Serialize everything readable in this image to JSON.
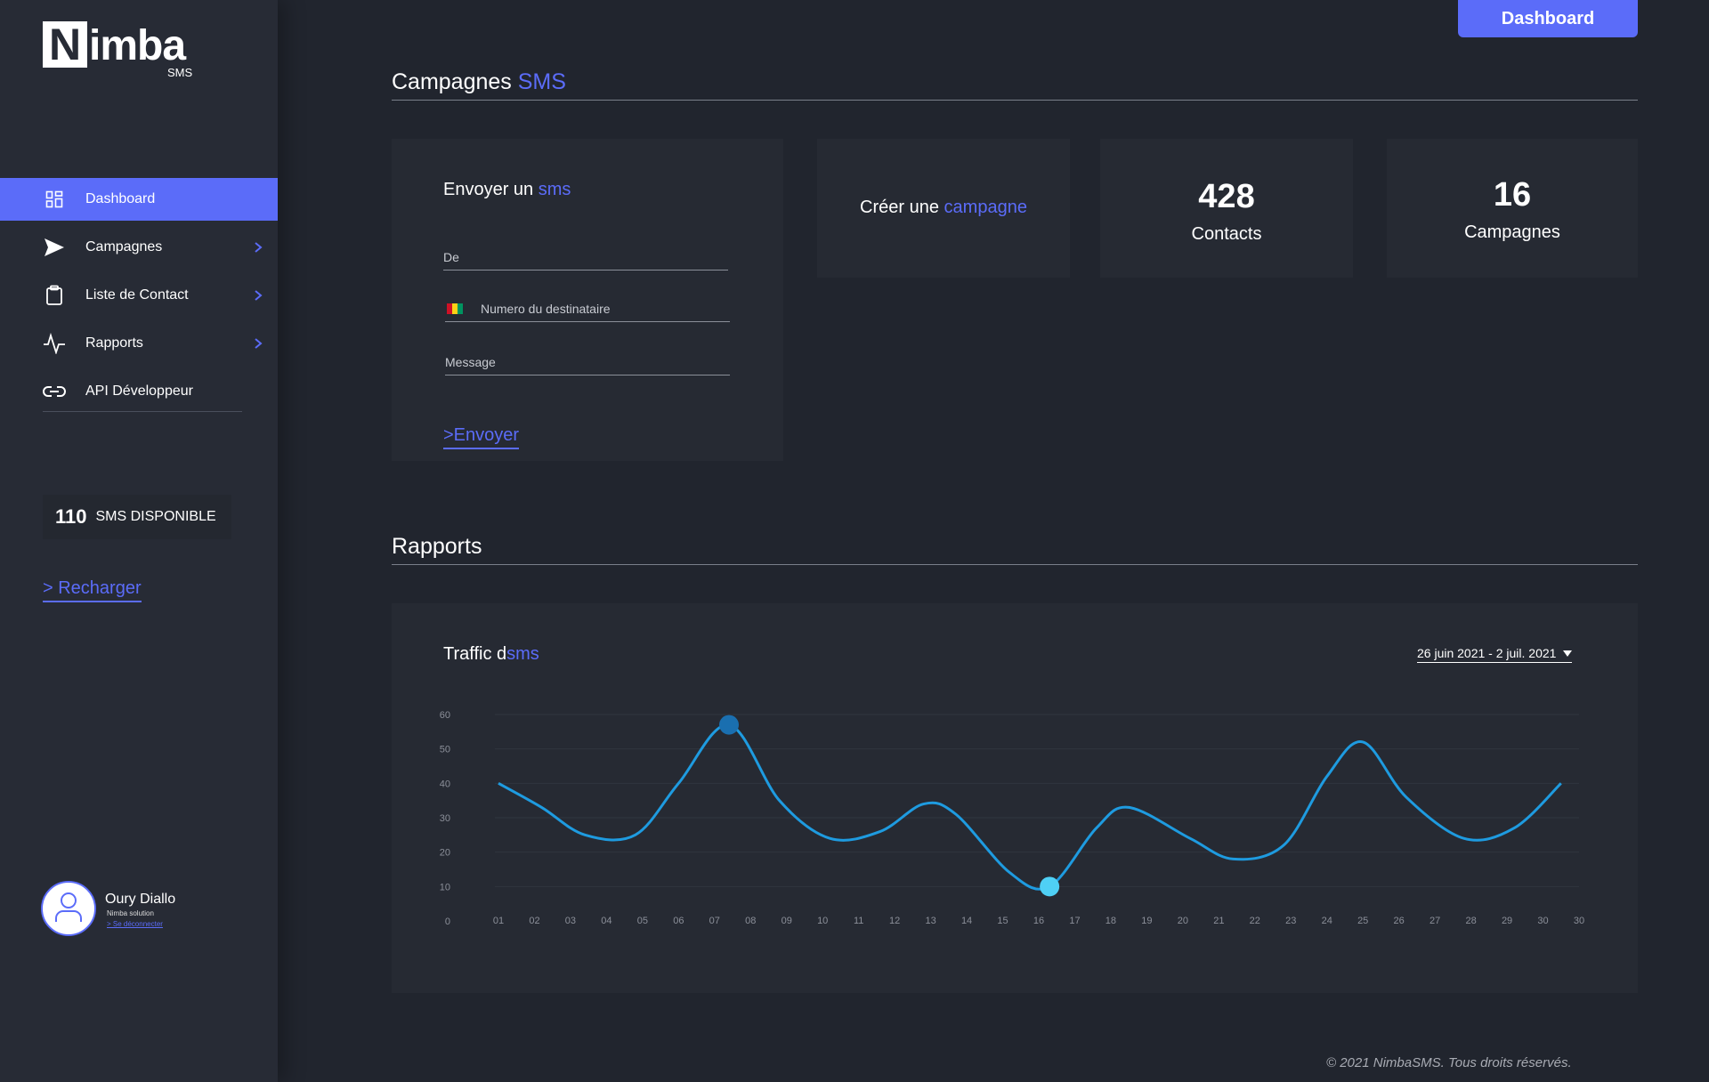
{
  "brand": {
    "logo_letter": "N",
    "logo_rest": "imba",
    "logo_sub": "SMS"
  },
  "sidebar": {
    "items": [
      {
        "label": "Dashboard",
        "icon": "dashboard-grid-icon",
        "active": true,
        "has_chevron": false
      },
      {
        "label": "Campagnes",
        "icon": "send-icon",
        "active": false,
        "has_chevron": true
      },
      {
        "label": "Liste de Contact",
        "icon": "clipboard-icon",
        "active": false,
        "has_chevron": true
      },
      {
        "label": "Rapports",
        "icon": "activity-icon",
        "active": false,
        "has_chevron": true
      },
      {
        "label": "API Développeur",
        "icon": "link-icon",
        "active": false,
        "has_chevron": false
      }
    ],
    "sms_count": "110",
    "sms_label": "SMS DISPONIBLE",
    "recharge": "> Recharger"
  },
  "user": {
    "name": "Oury Diallo",
    "org": "Nimba solution",
    "logout": "> Se déconnecter"
  },
  "header": {
    "button": "Dashboard"
  },
  "campaigns": {
    "title_main": "Campagnes ",
    "title_accent": "SMS"
  },
  "send_form": {
    "title_main": "Envoyer un ",
    "title_accent": "sms",
    "from_placeholder": "De",
    "recipient_placeholder": "Numero du destinataire",
    "message_placeholder": "Message",
    "send_label": ">Envoyer"
  },
  "create_campaign": {
    "main": "Créer une ",
    "accent": "campagne"
  },
  "stats": {
    "contacts_value": "428",
    "contacts_label": "Contacts",
    "campaigns_value": "16",
    "campaigns_label": "Campagnes"
  },
  "reports": {
    "title": "Rapports"
  },
  "traffic": {
    "title_main": "Traffic d",
    "title_accent": "sms",
    "date_range": "26 juin 2021 - 2 juil. 2021"
  },
  "colors": {
    "accent": "#5b6cf9",
    "line": "#1e9be0",
    "point_high": "#1a6fb0",
    "point_low": "#4fd0f5"
  },
  "chart_data": {
    "type": "line",
    "categories": [
      "01",
      "02",
      "03",
      "04",
      "05",
      "06",
      "07",
      "08",
      "09",
      "10",
      "11",
      "12",
      "13",
      "14",
      "15",
      "16",
      "17",
      "18",
      "19",
      "20",
      "21",
      "22",
      "23",
      "24",
      "25",
      "26",
      "27",
      "28",
      "29",
      "30",
      "30"
    ],
    "y_ticks": [
      "0",
      "10",
      "20",
      "30",
      "40",
      "50",
      "60"
    ],
    "ylim": [
      0,
      60
    ],
    "grid": true,
    "series": [
      {
        "values": [
          40,
          33,
          25,
          25,
          40,
          57,
          35,
          24,
          26,
          34,
          31,
          14,
          10,
          27,
          33,
          24,
          18,
          22,
          42,
          52,
          36,
          24,
          27,
          40
        ]
      }
    ],
    "x": [
      1,
      2.2,
      3.4,
      4.8,
      6,
      7.4,
      8.8,
      10.2,
      11.6,
      12.8,
      13.7,
      15.2,
      16.3,
      17.6,
      18.5,
      20.2,
      21.4,
      22.8,
      24,
      25,
      26.2,
      27.8,
      29.2,
      30.5
    ],
    "highlight": [
      {
        "x": 7.4,
        "y": 57
      },
      {
        "x": 16.3,
        "y": 10
      }
    ]
  },
  "footer": "© 2021 NimbaSMS. Tous droits réservés."
}
